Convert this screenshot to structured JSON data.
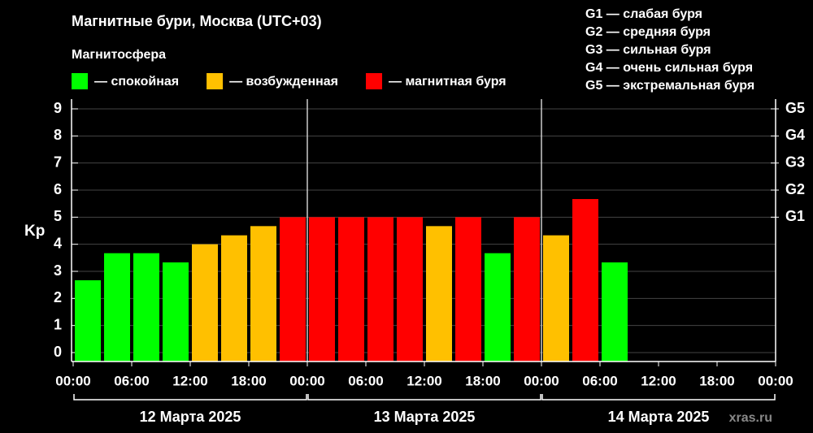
{
  "chart_data": {
    "type": "bar",
    "title": "Магнитные бури, Москва (UTC+03)",
    "legend_title": "Магнитосфера",
    "legend": [
      {
        "label": "— спокойная",
        "color": "#00ff00"
      },
      {
        "label": "— возбужденная",
        "color": "#ffc000"
      },
      {
        "label": "— магнитная буря",
        "color": "#ff0000"
      }
    ],
    "storm_scale": [
      "G1 — слабая буря",
      "G2 — средняя буря",
      "G3 — сильная буря",
      "G4 — очень сильная буря",
      "G5 — экстремальная буря"
    ],
    "ylabel": "Kp",
    "x": [
      0,
      3,
      6,
      9,
      12,
      15,
      18,
      21,
      24,
      27,
      30,
      33,
      36,
      39,
      42,
      45,
      48,
      51,
      54
    ],
    "bar_width": 3,
    "values": [
      2.67,
      3.67,
      3.67,
      3.33,
      4.0,
      4.33,
      4.67,
      5.0,
      5.0,
      5.0,
      5.0,
      5.0,
      4.67,
      5.0,
      3.67,
      5.0,
      4.33,
      5.67,
      3.33
    ],
    "colors": [
      "#00ff00",
      "#00ff00",
      "#00ff00",
      "#00ff00",
      "#ffc000",
      "#ffc000",
      "#ffc000",
      "#ff0000",
      "#ff0000",
      "#ff0000",
      "#ff0000",
      "#ff0000",
      "#ffc000",
      "#ff0000",
      "#00ff00",
      "#ff0000",
      "#ffc000",
      "#ff0000",
      "#00ff00"
    ],
    "xlim": [
      0,
      72
    ],
    "xticks": [
      {
        "value": 0,
        "label": "00:00"
      },
      {
        "value": 6,
        "label": "06:00"
      },
      {
        "value": 12,
        "label": "12:00"
      },
      {
        "value": 18,
        "label": "18:00"
      },
      {
        "value": 24,
        "label": "00:00"
      },
      {
        "value": 30,
        "label": "06:00"
      },
      {
        "value": 36,
        "label": "12:00"
      },
      {
        "value": 42,
        "label": "18:00"
      },
      {
        "value": 48,
        "label": "00:00"
      },
      {
        "value": 54,
        "label": "06:00"
      },
      {
        "value": 60,
        "label": "12:00"
      },
      {
        "value": 66,
        "label": "18:00"
      },
      {
        "value": 72,
        "label": "00:00"
      }
    ],
    "days": [
      "12 Марта 2025",
      "13 Марта 2025",
      "14 Марта 2025"
    ],
    "ylim": [
      -0.33,
      9.36
    ],
    "yticks": [
      0,
      1,
      2,
      3,
      4,
      5,
      6,
      7,
      8,
      9
    ],
    "y2ticks": [
      {
        "value": 5,
        "label": "G1"
      },
      {
        "value": 6,
        "label": "G2"
      },
      {
        "value": 7,
        "label": "G3"
      },
      {
        "value": 8,
        "label": "G4"
      },
      {
        "value": 9,
        "label": "G5"
      }
    ],
    "grid": true,
    "watermark": "xras.ru"
  }
}
